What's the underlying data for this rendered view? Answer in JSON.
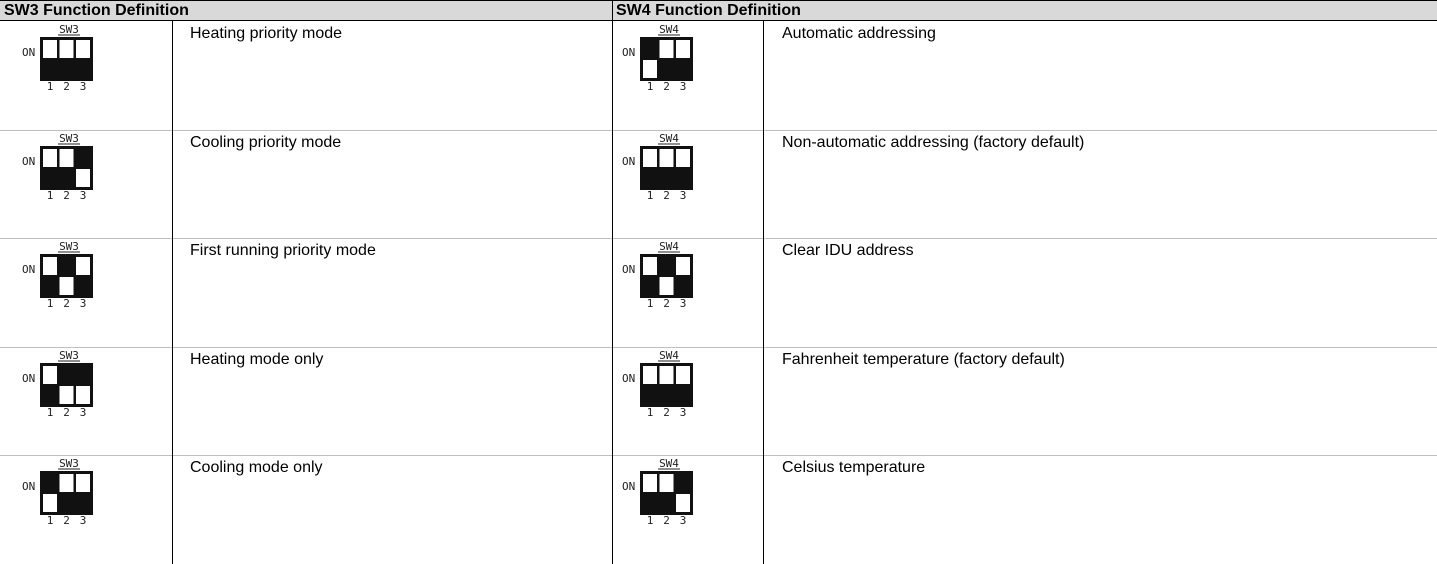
{
  "table": {
    "headers": [
      "SW3 Function Definition",
      "SW4 Function Definition"
    ],
    "rows": [
      [
        {
          "switch": "SW3",
          "on": "ON",
          "numbers": [
            "1",
            "2",
            "3"
          ],
          "description": "Heating priority mode"
        },
        {
          "switch": "SW4",
          "on": "ON",
          "numbers": [
            "1",
            "2",
            "3"
          ],
          "description": "Automatic addressing"
        }
      ],
      [
        {
          "switch": "SW3",
          "on": "ON",
          "numbers": [
            "1",
            "2",
            "3"
          ],
          "description": "Cooling priority mode"
        },
        {
          "switch": "SW4",
          "on": "ON",
          "numbers": [
            "1",
            "2",
            "3"
          ],
          "description": "Non-automatic addressing (factory default)"
        }
      ],
      [
        {
          "switch": "SW3",
          "on": "ON",
          "numbers": [
            "1",
            "2",
            "3"
          ],
          "description": "First running priority mode"
        },
        {
          "switch": "SW4",
          "on": "ON",
          "numbers": [
            "1",
            "2",
            "3"
          ],
          "description": "Clear IDU address"
        }
      ],
      [
        {
          "switch": "SW3",
          "on": "ON",
          "numbers": [
            "1",
            "2",
            "3"
          ],
          "description": "Heating mode only"
        },
        {
          "switch": "SW4",
          "on": "ON",
          "numbers": [
            "1",
            "2",
            "3"
          ],
          "description": "Fahrenheit temperature (factory default)"
        }
      ],
      [
        {
          "switch": "SW3",
          "on": "ON",
          "numbers": [
            "1",
            "2",
            "3"
          ],
          "description": "Cooling mode only"
        },
        {
          "switch": "SW4",
          "on": "ON",
          "numbers": [
            "1",
            "2",
            "3"
          ],
          "description": "Celsius temperature"
        }
      ]
    ]
  }
}
